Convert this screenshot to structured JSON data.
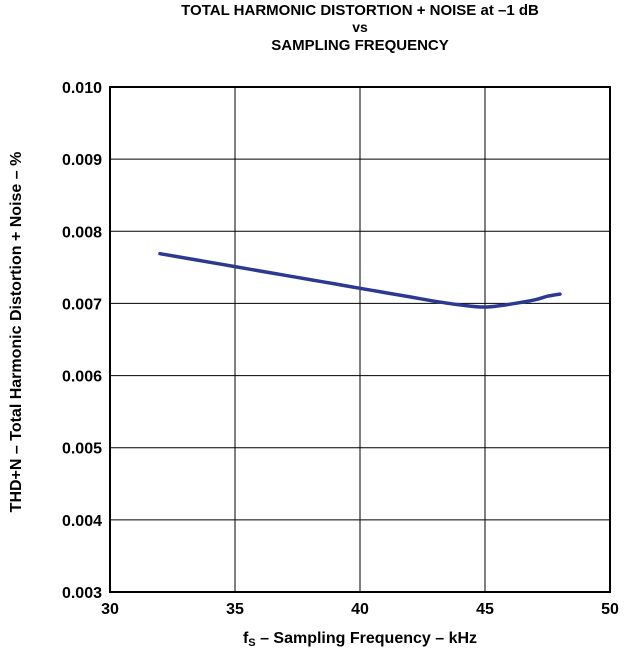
{
  "chart_data": {
    "type": "line",
    "title_lines": [
      "TOTAL HARMONIC DISTORTION + NOISE at –1 dB",
      "vs",
      "SAMPLING FREQUENCY"
    ],
    "xlabel_parts": {
      "symbol": "f",
      "subscript": "S",
      "rest": " – Sampling Frequency – kHz"
    },
    "ylabel": "THD+N – Total Harmonic Distortion + Noise – %",
    "xlim": [
      30,
      50
    ],
    "ylim": [
      0.003,
      0.01
    ],
    "xticks": [
      30,
      35,
      40,
      45,
      50
    ],
    "xtick_labels": [
      "30",
      "35",
      "40",
      "45",
      "50"
    ],
    "yticks": [
      0.003,
      0.004,
      0.005,
      0.006,
      0.007,
      0.008,
      0.009,
      0.01
    ],
    "ytick_labels": [
      "0.003",
      "0.004",
      "0.005",
      "0.006",
      "0.007",
      "0.008",
      "0.009",
      "0.010"
    ],
    "grid": true,
    "series": [
      {
        "color": "#2b3990",
        "x": [
          32,
          33,
          34,
          35,
          36,
          37,
          38,
          39,
          40,
          41,
          42,
          43,
          44,
          45,
          46,
          47,
          47.5,
          48
        ],
        "y": [
          0.00769,
          0.00763,
          0.00757,
          0.00751,
          0.00745,
          0.00739,
          0.00733,
          0.00727,
          0.00721,
          0.00715,
          0.00709,
          0.00703,
          0.00698,
          0.00695,
          0.00699,
          0.00705,
          0.0071,
          0.00713
        ]
      }
    ]
  }
}
